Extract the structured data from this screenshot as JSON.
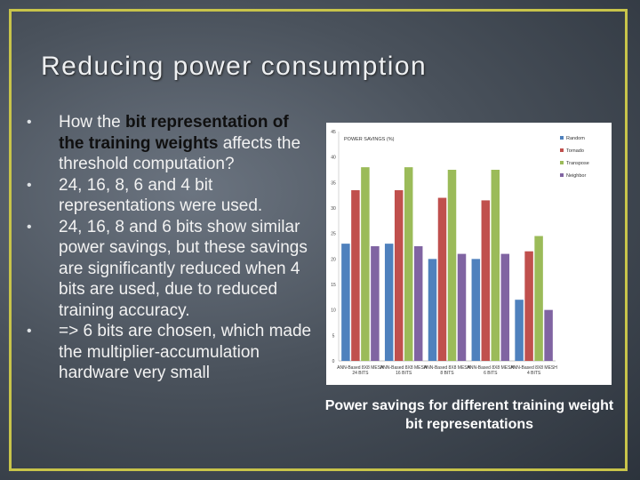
{
  "slide": {
    "title": "Reducing power consumption",
    "bullets": [
      {
        "parts": [
          {
            "text": "How the ",
            "strong": false
          },
          {
            "text": "bit representation of the training weights",
            "strong": true
          },
          {
            "text": " affects the threshold computation?",
            "strong": false
          }
        ]
      },
      {
        "parts": [
          {
            "text": "24, 16, 8, 6 and 4 bit representations were used.",
            "strong": false
          }
        ]
      },
      {
        "parts": [
          {
            "text": "24, 16, 8 and 6 bits show similar power savings, but these savings are significantly reduced when 4 bits are used, due to reduced training accuracy.",
            "strong": false
          }
        ]
      },
      {
        "parts": [
          {
            "text": "=> 6 bits are chosen, which made the multiplier-accumulation hardware very small",
            "strong": false
          }
        ]
      }
    ],
    "caption": "Power savings for different training weight bit representations"
  },
  "chart_data": {
    "type": "bar",
    "title": "POWER SAVINGS (%)",
    "categories": [
      "ANN-Based 8X8 MESH\n24 BITS",
      "ANN-Based 8X8 MESH\n16 BITS",
      "ANN-Based 8X8 MESH\n8 BITS",
      "ANN-Based 8X8 MESH\n6 BITS",
      "ANN-Based 8X8 MESH\n4 BITS"
    ],
    "series": [
      {
        "name": "Random",
        "color": "#4f81bd",
        "values": [
          23,
          23,
          20,
          20,
          12
        ]
      },
      {
        "name": "Tornado",
        "color": "#c0504d",
        "values": [
          33.5,
          33.5,
          32,
          31.5,
          21.5
        ]
      },
      {
        "name": "Transpose",
        "color": "#9bbb59",
        "values": [
          38,
          38,
          37.5,
          37.5,
          24.5
        ]
      },
      {
        "name": "Neighbor",
        "color": "#8064a2",
        "values": [
          22.5,
          22.5,
          21,
          21,
          10
        ]
      }
    ],
    "ylim": [
      0,
      45
    ],
    "yticks": [
      0,
      5,
      10,
      15,
      20,
      25,
      30,
      35,
      40,
      45
    ],
    "grid": false,
    "legend": "right"
  }
}
